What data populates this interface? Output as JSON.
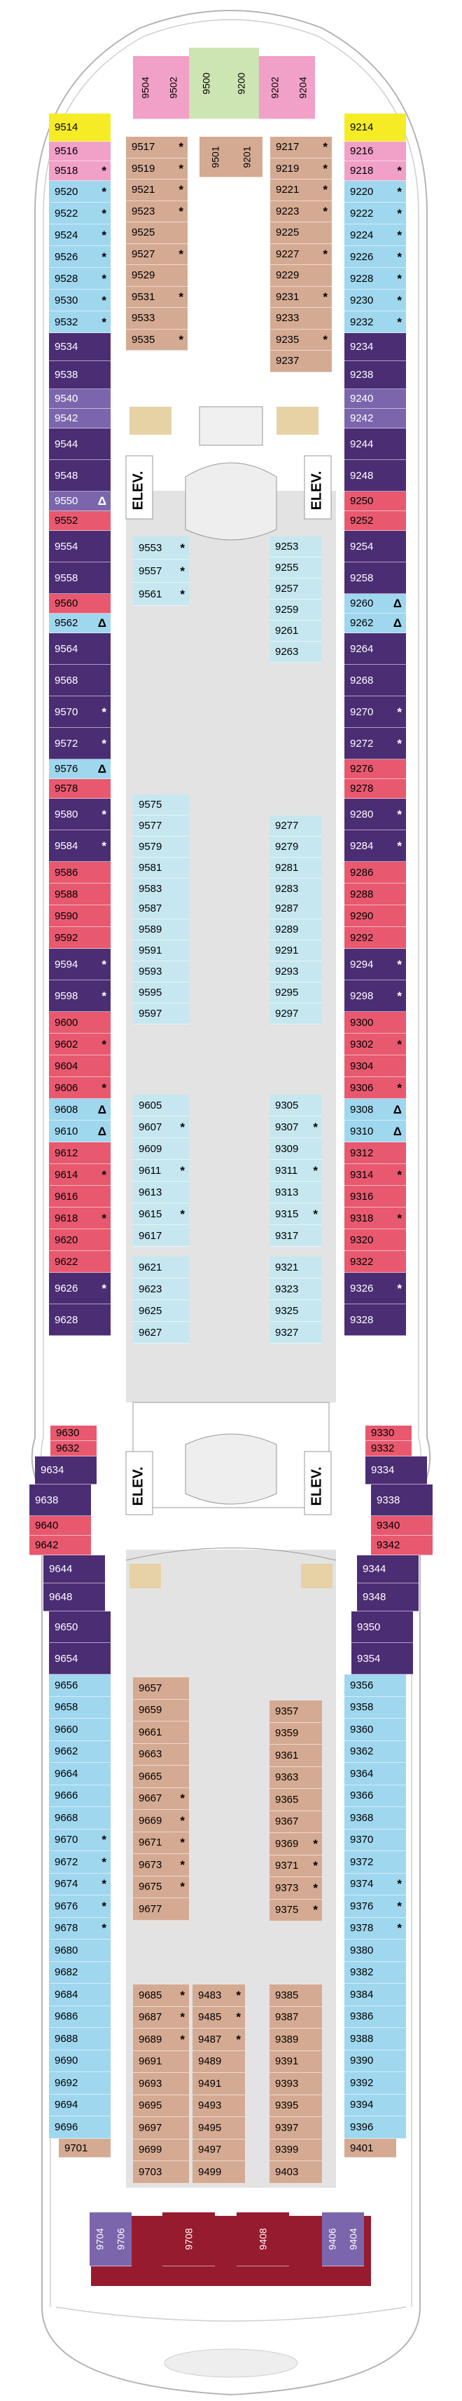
{
  "legend_markers": {
    "connecting": "↕",
    "balcony_note": "*",
    "accessible": "♿",
    "delta": "Δ"
  },
  "colors": {
    "yellow": "#f6ec25",
    "pink": "#f1a0c8",
    "lightblue": "#9fd7ee",
    "tan": "#d5aa92",
    "navy": "#4b2d74",
    "purple": "#7b66ad",
    "red": "#e8596f",
    "maroon": "#971b2e",
    "green": "#cde4b3",
    "corridor": "#e3e3e3",
    "interior_light": "#c6e7ef",
    "stair": "#e7d2a6"
  },
  "elevator_label": "ELEV.",
  "cabins": [
    {
      "n": "9514",
      "c": "yellow"
    },
    {
      "n": "9516",
      "c": "pink"
    },
    {
      "n": "9518",
      "c": "pink",
      "mk": "*"
    },
    {
      "n": "9520",
      "c": "lightblue",
      "mk": "*"
    },
    {
      "n": "9522",
      "c": "lightblue",
      "mk": "*"
    },
    {
      "n": "9524",
      "c": "lightblue",
      "mk": "*"
    },
    {
      "n": "9526",
      "c": "lightblue",
      "mk": "*"
    },
    {
      "n": "9528",
      "c": "lightblue",
      "mk": "*"
    },
    {
      "n": "9530",
      "c": "lightblue",
      "mk": "*"
    },
    {
      "n": "9532",
      "c": "lightblue",
      "mk": "*"
    },
    {
      "n": "9534",
      "c": "navy"
    },
    {
      "n": "9538",
      "c": "navy"
    },
    {
      "n": "9540",
      "c": "purple"
    },
    {
      "n": "9542",
      "c": "purple"
    },
    {
      "n": "9544",
      "c": "navy"
    },
    {
      "n": "9548",
      "c": "navy"
    },
    {
      "n": "9550",
      "c": "purple",
      "mk": "Δ"
    },
    {
      "n": "9552",
      "c": "red"
    },
    {
      "n": "9554",
      "c": "navy"
    },
    {
      "n": "9558",
      "c": "navy"
    },
    {
      "n": "9560",
      "c": "red"
    },
    {
      "n": "9562",
      "c": "lightblue",
      "mk": "Δ"
    },
    {
      "n": "9564",
      "c": "navy"
    },
    {
      "n": "9568",
      "c": "navy"
    },
    {
      "n": "9570",
      "c": "navy",
      "mk": "*"
    },
    {
      "n": "9572",
      "c": "navy",
      "mk": "*"
    },
    {
      "n": "9576",
      "c": "lightblue",
      "mk": "Δ"
    },
    {
      "n": "9578",
      "c": "red"
    },
    {
      "n": "9580",
      "c": "navy",
      "mk": "*"
    },
    {
      "n": "9584",
      "c": "navy",
      "mk": "*"
    },
    {
      "n": "9586",
      "c": "red"
    },
    {
      "n": "9588",
      "c": "red"
    },
    {
      "n": "9590",
      "c": "red"
    },
    {
      "n": "9592",
      "c": "red"
    },
    {
      "n": "9594",
      "c": "navy",
      "mk": "*"
    },
    {
      "n": "9598",
      "c": "navy",
      "mk": "*"
    },
    {
      "n": "9600",
      "c": "red"
    },
    {
      "n": "9602",
      "c": "red",
      "mk": "*"
    },
    {
      "n": "9604",
      "c": "red"
    },
    {
      "n": "9606",
      "c": "red",
      "mk": "*"
    },
    {
      "n": "9608",
      "c": "lightblue",
      "mk": "Δ"
    },
    {
      "n": "9610",
      "c": "lightblue",
      "mk": "Δ"
    },
    {
      "n": "9612",
      "c": "red"
    },
    {
      "n": "9614",
      "c": "red",
      "mk": "*"
    },
    {
      "n": "9616",
      "c": "red"
    },
    {
      "n": "9618",
      "c": "red",
      "mk": "*"
    },
    {
      "n": "9620",
      "c": "red"
    },
    {
      "n": "9622",
      "c": "red"
    },
    {
      "n": "9626",
      "c": "navy",
      "mk": "*"
    },
    {
      "n": "9628",
      "c": "navy"
    },
    {
      "n": "9630",
      "c": "red"
    },
    {
      "n": "9632",
      "c": "red"
    },
    {
      "n": "9634",
      "c": "navy"
    },
    {
      "n": "9638",
      "c": "navy"
    },
    {
      "n": "9640",
      "c": "red"
    },
    {
      "n": "9642",
      "c": "red"
    },
    {
      "n": "9644",
      "c": "navy"
    },
    {
      "n": "9648",
      "c": "navy"
    },
    {
      "n": "9650",
      "c": "navy"
    },
    {
      "n": "9654",
      "c": "navy"
    },
    {
      "n": "9656",
      "c": "lightblue"
    },
    {
      "n": "9658",
      "c": "lightblue"
    },
    {
      "n": "9660",
      "c": "lightblue"
    },
    {
      "n": "9662",
      "c": "lightblue"
    },
    {
      "n": "9664",
      "c": "lightblue"
    },
    {
      "n": "9666",
      "c": "lightblue"
    },
    {
      "n": "9668",
      "c": "lightblue"
    },
    {
      "n": "9670",
      "c": "lightblue",
      "mk": "*"
    },
    {
      "n": "9672",
      "c": "lightblue",
      "mk": "*"
    },
    {
      "n": "9674",
      "c": "lightblue",
      "mk": "*"
    },
    {
      "n": "9676",
      "c": "lightblue",
      "mk": "*"
    },
    {
      "n": "9678",
      "c": "lightblue",
      "mk": "*"
    },
    {
      "n": "9680",
      "c": "lightblue"
    },
    {
      "n": "9682",
      "c": "lightblue"
    },
    {
      "n": "9684",
      "c": "lightblue"
    },
    {
      "n": "9686",
      "c": "lightblue"
    },
    {
      "n": "9688",
      "c": "lightblue"
    },
    {
      "n": "9690",
      "c": "lightblue"
    },
    {
      "n": "9692",
      "c": "lightblue"
    },
    {
      "n": "9694",
      "c": "lightblue"
    },
    {
      "n": "9696",
      "c": "lightblue"
    },
    {
      "n": "9701",
      "c": "tan"
    },
    {
      "n": "9704",
      "c": "purple"
    },
    {
      "n": "9706",
      "c": "purple"
    },
    {
      "n": "9708",
      "c": "maroon"
    },
    {
      "n": "9214",
      "c": "yellow"
    },
    {
      "n": "9216",
      "c": "pink"
    },
    {
      "n": "9218",
      "c": "pink",
      "mk": "*"
    },
    {
      "n": "9220",
      "c": "lightblue",
      "mk": "*"
    },
    {
      "n": "9222",
      "c": "lightblue",
      "mk": "*"
    },
    {
      "n": "9224",
      "c": "lightblue",
      "mk": "*"
    },
    {
      "n": "9226",
      "c": "lightblue",
      "mk": "*"
    },
    {
      "n": "9228",
      "c": "lightblue",
      "mk": "*"
    },
    {
      "n": "9230",
      "c": "lightblue",
      "mk": "*"
    },
    {
      "n": "9232",
      "c": "lightblue",
      "mk": "*"
    },
    {
      "n": "9234",
      "c": "navy"
    },
    {
      "n": "9238",
      "c": "navy"
    },
    {
      "n": "9240",
      "c": "purple"
    },
    {
      "n": "9242",
      "c": "purple"
    },
    {
      "n": "9244",
      "c": "navy"
    },
    {
      "n": "9248",
      "c": "navy"
    },
    {
      "n": "9250",
      "c": "red"
    },
    {
      "n": "9252",
      "c": "red"
    },
    {
      "n": "9254",
      "c": "navy"
    },
    {
      "n": "9258",
      "c": "navy"
    },
    {
      "n": "9260",
      "c": "lightblue",
      "mk": "Δ"
    },
    {
      "n": "9262",
      "c": "lightblue",
      "mk": "Δ"
    },
    {
      "n": "9264",
      "c": "navy"
    },
    {
      "n": "9268",
      "c": "navy"
    },
    {
      "n": "9270",
      "c": "navy",
      "mk": "*"
    },
    {
      "n": "9272",
      "c": "navy",
      "mk": "*"
    },
    {
      "n": "9276",
      "c": "red"
    },
    {
      "n": "9278",
      "c": "red"
    },
    {
      "n": "9280",
      "c": "navy",
      "mk": "*"
    },
    {
      "n": "9284",
      "c": "navy",
      "mk": "*"
    },
    {
      "n": "9286",
      "c": "red"
    },
    {
      "n": "9288",
      "c": "red"
    },
    {
      "n": "9290",
      "c": "red"
    },
    {
      "n": "9292",
      "c": "red"
    },
    {
      "n": "9294",
      "c": "navy",
      "mk": "*"
    },
    {
      "n": "9298",
      "c": "navy",
      "mk": "*"
    },
    {
      "n": "9300",
      "c": "red"
    },
    {
      "n": "9302",
      "c": "red",
      "mk": "*"
    },
    {
      "n": "9304",
      "c": "red"
    },
    {
      "n": "9306",
      "c": "red",
      "mk": "*"
    },
    {
      "n": "9308",
      "c": "lightblue",
      "mk": "Δ"
    },
    {
      "n": "9310",
      "c": "lightblue",
      "mk": "Δ"
    },
    {
      "n": "9312",
      "c": "red"
    },
    {
      "n": "9314",
      "c": "red",
      "mk": "*"
    },
    {
      "n": "9316",
      "c": "red"
    },
    {
      "n": "9318",
      "c": "red",
      "mk": "*"
    },
    {
      "n": "9320",
      "c": "red"
    },
    {
      "n": "9322",
      "c": "red"
    },
    {
      "n": "9326",
      "c": "navy",
      "mk": "*"
    },
    {
      "n": "9328",
      "c": "navy"
    },
    {
      "n": "9330",
      "c": "red"
    },
    {
      "n": "9332",
      "c": "red"
    },
    {
      "n": "9334",
      "c": "navy"
    },
    {
      "n": "9338",
      "c": "navy"
    },
    {
      "n": "9340",
      "c": "red"
    },
    {
      "n": "9342",
      "c": "red"
    },
    {
      "n": "9344",
      "c": "navy"
    },
    {
      "n": "9348",
      "c": "navy"
    },
    {
      "n": "9350",
      "c": "navy"
    },
    {
      "n": "9354",
      "c": "navy"
    },
    {
      "n": "9356",
      "c": "lightblue"
    },
    {
      "n": "9358",
      "c": "lightblue"
    },
    {
      "n": "9360",
      "c": "lightblue"
    },
    {
      "n": "9362",
      "c": "lightblue"
    },
    {
      "n": "9364",
      "c": "lightblue"
    },
    {
      "n": "9366",
      "c": "lightblue"
    },
    {
      "n": "9368",
      "c": "lightblue"
    },
    {
      "n": "9370",
      "c": "lightblue"
    },
    {
      "n": "9372",
      "c": "lightblue"
    },
    {
      "n": "9374",
      "c": "lightblue",
      "mk": "*"
    },
    {
      "n": "9376",
      "c": "lightblue",
      "mk": "*"
    },
    {
      "n": "9378",
      "c": "lightblue",
      "mk": "*"
    },
    {
      "n": "9380",
      "c": "lightblue"
    },
    {
      "n": "9382",
      "c": "lightblue"
    },
    {
      "n": "9384",
      "c": "lightblue"
    },
    {
      "n": "9386",
      "c": "lightblue"
    },
    {
      "n": "9388",
      "c": "lightblue"
    },
    {
      "n": "9390",
      "c": "lightblue"
    },
    {
      "n": "9392",
      "c": "lightblue"
    },
    {
      "n": "9394",
      "c": "lightblue"
    },
    {
      "n": "9396",
      "c": "lightblue"
    },
    {
      "n": "9401",
      "c": "tan"
    },
    {
      "n": "9404",
      "c": "purple"
    },
    {
      "n": "9406",
      "c": "purple"
    },
    {
      "n": "9408",
      "c": "maroon"
    },
    {
      "n": "9504",
      "c": "pink"
    },
    {
      "n": "9502",
      "c": "pink"
    },
    {
      "n": "9500",
      "c": "green"
    },
    {
      "n": "9200",
      "c": "green"
    },
    {
      "n": "9202",
      "c": "pink"
    },
    {
      "n": "9204",
      "c": "pink"
    },
    {
      "n": "9517",
      "c": "tan",
      "mk": "*"
    },
    {
      "n": "9519",
      "c": "tan",
      "mk": "*"
    },
    {
      "n": "9521",
      "c": "tan",
      "mk": "*"
    },
    {
      "n": "9523",
      "c": "tan",
      "mk": "*"
    },
    {
      "n": "9525",
      "c": "tan"
    },
    {
      "n": "9527",
      "c": "tan",
      "mk": "*"
    },
    {
      "n": "9529",
      "c": "tan"
    },
    {
      "n": "9531",
      "c": "tan",
      "mk": "*"
    },
    {
      "n": "9533",
      "c": "tan"
    },
    {
      "n": "9535",
      "c": "tan",
      "mk": "*"
    },
    {
      "n": "9501",
      "c": "tan"
    },
    {
      "n": "9201",
      "c": "tan"
    },
    {
      "n": "9217",
      "c": "tan",
      "mk": "*"
    },
    {
      "n": "9219",
      "c": "tan",
      "mk": "*"
    },
    {
      "n": "9221",
      "c": "tan",
      "mk": "*"
    },
    {
      "n": "9223",
      "c": "tan",
      "mk": "*"
    },
    {
      "n": "9225",
      "c": "tan"
    },
    {
      "n": "9227",
      "c": "tan",
      "mk": "*"
    },
    {
      "n": "9229",
      "c": "tan"
    },
    {
      "n": "9231",
      "c": "tan",
      "mk": "*"
    },
    {
      "n": "9233",
      "c": "tan"
    },
    {
      "n": "9235",
      "c": "tan",
      "mk": "*"
    },
    {
      "n": "9237",
      "c": "tan"
    },
    {
      "n": "9553",
      "c": "interior_light",
      "mk": "*"
    },
    {
      "n": "9557",
      "c": "interior_light",
      "mk": "*"
    },
    {
      "n": "9561",
      "c": "interior_light",
      "mk": "*"
    },
    {
      "n": "9253",
      "c": "interior_light"
    },
    {
      "n": "9255",
      "c": "interior_light"
    },
    {
      "n": "9257",
      "c": "interior_light"
    },
    {
      "n": "9259",
      "c": "interior_light"
    },
    {
      "n": "9261",
      "c": "interior_light"
    },
    {
      "n": "9263",
      "c": "interior_light"
    },
    {
      "n": "9575",
      "c": "interior_light"
    },
    {
      "n": "9577",
      "c": "interior_light"
    },
    {
      "n": "9579",
      "c": "interior_light"
    },
    {
      "n": "9581",
      "c": "interior_light"
    },
    {
      "n": "9583",
      "c": "interior_light"
    },
    {
      "n": "9587",
      "c": "interior_light"
    },
    {
      "n": "9589",
      "c": "interior_light"
    },
    {
      "n": "9591",
      "c": "interior_light"
    },
    {
      "n": "9593",
      "c": "interior_light"
    },
    {
      "n": "9595",
      "c": "interior_light"
    },
    {
      "n": "9597",
      "c": "interior_light"
    },
    {
      "n": "9605",
      "c": "interior_light"
    },
    {
      "n": "9607",
      "c": "interior_light",
      "mk": "*"
    },
    {
      "n": "9609",
      "c": "interior_light"
    },
    {
      "n": "9611",
      "c": "interior_light",
      "mk": "*"
    },
    {
      "n": "9613",
      "c": "interior_light"
    },
    {
      "n": "9615",
      "c": "interior_light",
      "mk": "*"
    },
    {
      "n": "9617",
      "c": "interior_light"
    },
    {
      "n": "9621",
      "c": "interior_light"
    },
    {
      "n": "9623",
      "c": "interior_light"
    },
    {
      "n": "9625",
      "c": "interior_light"
    },
    {
      "n": "9627",
      "c": "interior_light"
    },
    {
      "n": "9277",
      "c": "interior_light"
    },
    {
      "n": "9279",
      "c": "interior_light"
    },
    {
      "n": "9281",
      "c": "interior_light"
    },
    {
      "n": "9283",
      "c": "interior_light"
    },
    {
      "n": "9287",
      "c": "interior_light"
    },
    {
      "n": "9289",
      "c": "interior_light"
    },
    {
      "n": "9291",
      "c": "interior_light"
    },
    {
      "n": "9293",
      "c": "interior_light"
    },
    {
      "n": "9295",
      "c": "interior_light"
    },
    {
      "n": "9297",
      "c": "interior_light"
    },
    {
      "n": "9305",
      "c": "interior_light"
    },
    {
      "n": "9307",
      "c": "interior_light",
      "mk": "*"
    },
    {
      "n": "9309",
      "c": "interior_light"
    },
    {
      "n": "9311",
      "c": "interior_light",
      "mk": "*"
    },
    {
      "n": "9313",
      "c": "interior_light"
    },
    {
      "n": "9315",
      "c": "interior_light",
      "mk": "*"
    },
    {
      "n": "9317",
      "c": "interior_light"
    },
    {
      "n": "9321",
      "c": "interior_light"
    },
    {
      "n": "9323",
      "c": "interior_light"
    },
    {
      "n": "9325",
      "c": "interior_light"
    },
    {
      "n": "9327",
      "c": "interior_light"
    },
    {
      "n": "9657",
      "c": "tan"
    },
    {
      "n": "9659",
      "c": "tan"
    },
    {
      "n": "9661",
      "c": "tan"
    },
    {
      "n": "9663",
      "c": "tan"
    },
    {
      "n": "9665",
      "c": "tan"
    },
    {
      "n": "9667",
      "c": "tan",
      "mk": "*"
    },
    {
      "n": "9669",
      "c": "tan",
      "mk": "*"
    },
    {
      "n": "9671",
      "c": "tan",
      "mk": "*"
    },
    {
      "n": "9673",
      "c": "tan",
      "mk": "*"
    },
    {
      "n": "9675",
      "c": "tan",
      "mk": "*"
    },
    {
      "n": "9677",
      "c": "tan"
    },
    {
      "n": "9357",
      "c": "tan"
    },
    {
      "n": "9359",
      "c": "tan"
    },
    {
      "n": "9361",
      "c": "tan"
    },
    {
      "n": "9363",
      "c": "tan"
    },
    {
      "n": "9365",
      "c": "tan"
    },
    {
      "n": "9367",
      "c": "tan"
    },
    {
      "n": "9369",
      "c": "tan",
      "mk": "*"
    },
    {
      "n": "9371",
      "c": "tan",
      "mk": "*"
    },
    {
      "n": "9373",
      "c": "tan",
      "mk": "*"
    },
    {
      "n": "9375",
      "c": "tan",
      "mk": "*"
    },
    {
      "n": "9685",
      "c": "tan",
      "mk": "*"
    },
    {
      "n": "9687",
      "c": "tan",
      "mk": "*"
    },
    {
      "n": "9689",
      "c": "tan",
      "mk": "*"
    },
    {
      "n": "9691",
      "c": "tan"
    },
    {
      "n": "9693",
      "c": "tan"
    },
    {
      "n": "9695",
      "c": "tan"
    },
    {
      "n": "9697",
      "c": "tan"
    },
    {
      "n": "9699",
      "c": "tan"
    },
    {
      "n": "9703",
      "c": "tan"
    },
    {
      "n": "9483",
      "c": "tan",
      "mk": "*"
    },
    {
      "n": "9485",
      "c": "tan",
      "mk": "*"
    },
    {
      "n": "9487",
      "c": "tan",
      "mk": "*"
    },
    {
      "n": "9489",
      "c": "tan"
    },
    {
      "n": "9491",
      "c": "tan"
    },
    {
      "n": "9493",
      "c": "tan"
    },
    {
      "n": "9495",
      "c": "tan"
    },
    {
      "n": "9497",
      "c": "tan"
    },
    {
      "n": "9499",
      "c": "tan"
    },
    {
      "n": "9385",
      "c": "tan"
    },
    {
      "n": "9387",
      "c": "tan"
    },
    {
      "n": "9389",
      "c": "tan"
    },
    {
      "n": "9391",
      "c": "tan"
    },
    {
      "n": "9393",
      "c": "tan"
    },
    {
      "n": "9395",
      "c": "tan"
    },
    {
      "n": "9397",
      "c": "tan"
    },
    {
      "n": "9399",
      "c": "tan"
    },
    {
      "n": "9403",
      "c": "tan"
    }
  ]
}
